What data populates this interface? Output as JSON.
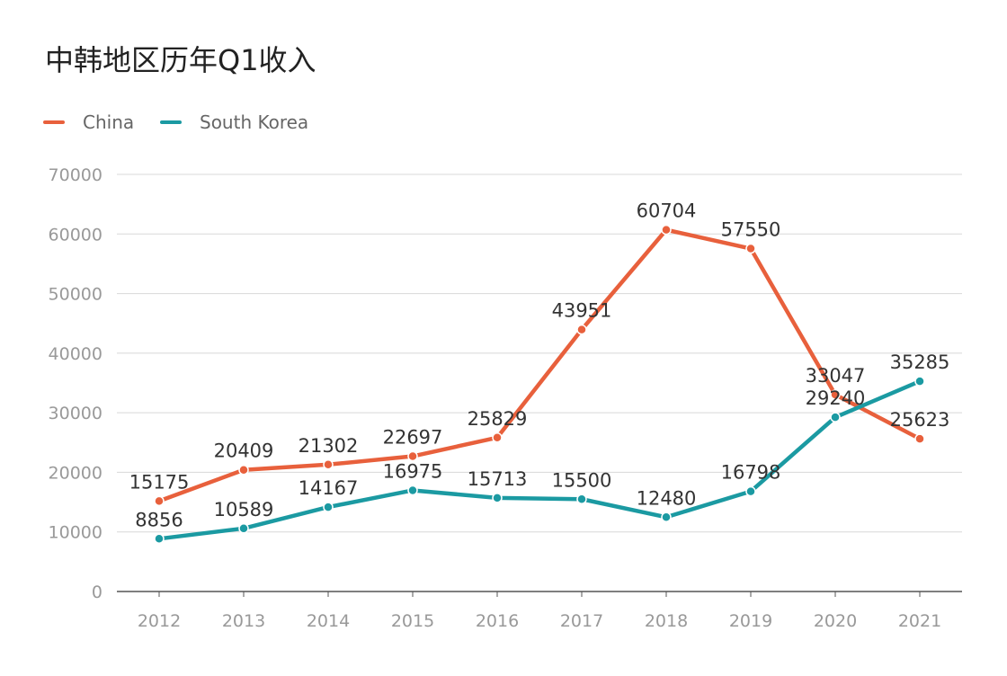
{
  "chart_data": {
    "type": "line",
    "title": "中韩地区历年Q1收入",
    "categories": [
      "2012",
      "2013",
      "2014",
      "2015",
      "2016",
      "2017",
      "2018",
      "2019",
      "2020",
      "2021"
    ],
    "series": [
      {
        "name": "China",
        "color": "#e8603c",
        "values": [
          15175,
          20409,
          21302,
          22697,
          25829,
          43951,
          60704,
          57550,
          33047,
          25623
        ]
      },
      {
        "name": "South Korea",
        "color": "#1b9aa2",
        "values": [
          8856,
          10589,
          14167,
          16975,
          15713,
          15500,
          12480,
          16798,
          29240,
          35285
        ]
      }
    ],
    "yticks": [
      "0",
      "10000",
      "20000",
      "30000",
      "40000",
      "50000",
      "60000",
      "70000"
    ],
    "ylim": [
      0,
      70000
    ],
    "grid": true,
    "legend": "top-left",
    "xlabel": "",
    "ylabel": ""
  }
}
